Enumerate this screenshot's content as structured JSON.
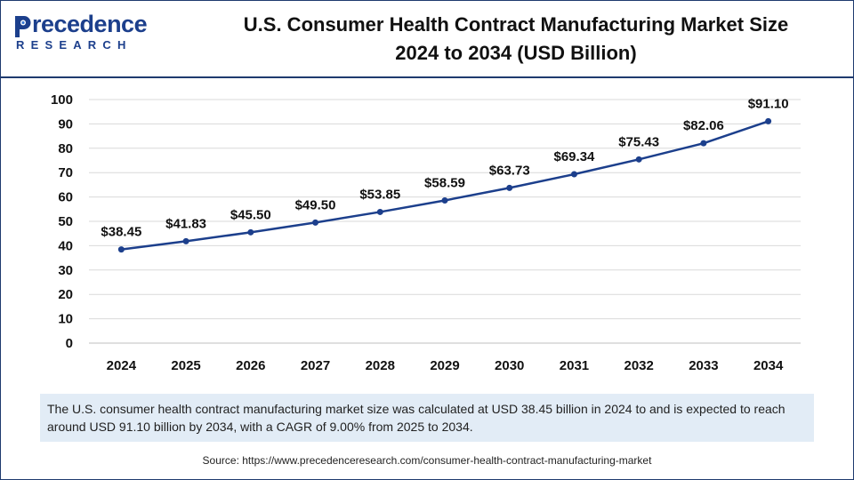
{
  "brand": {
    "name_rest": "recedence",
    "sub": "RESEARCH",
    "color": "#1c3f8c"
  },
  "title": {
    "line1": "U.S. Consumer Health Contract Manufacturing Market Size",
    "line2": "2024 to 2034 (USD Billion)"
  },
  "chart_data": {
    "type": "line",
    "title": "U.S. Consumer Health Contract Manufacturing Market Size 2024 to 2034 (USD Billion)",
    "categories": [
      "2024",
      "2025",
      "2026",
      "2027",
      "2028",
      "2029",
      "2030",
      "2031",
      "2032",
      "2033",
      "2034"
    ],
    "values": [
      38.45,
      41.83,
      45.5,
      49.5,
      53.85,
      58.59,
      63.73,
      69.34,
      75.43,
      82.06,
      91.1
    ],
    "data_labels": [
      "$38.45",
      "$41.83",
      "$45.50",
      "$49.50",
      "$53.85",
      "$58.59",
      "$63.73",
      "$69.34",
      "$75.43",
      "$82.06",
      "$91.10"
    ],
    "yticks": [
      "0",
      "10",
      "20",
      "30",
      "40",
      "50",
      "60",
      "70",
      "80",
      "90",
      "100"
    ],
    "ylim": [
      0,
      100
    ],
    "xlabel": "",
    "ylabel": "",
    "grid": true,
    "line_color": "#1c3f8c",
    "grid_color": "#d9d9d9"
  },
  "note": "The U.S. consumer health contract manufacturing market size was calculated at USD 38.45 billion in 2024 to and is expected to reach around USD 91.10 billion by 2034, with a CAGR of 9.00% from 2025 to 2034.",
  "source": "Source: https://www.precedenceresearch.com/consumer-health-contract-manufacturing-market"
}
